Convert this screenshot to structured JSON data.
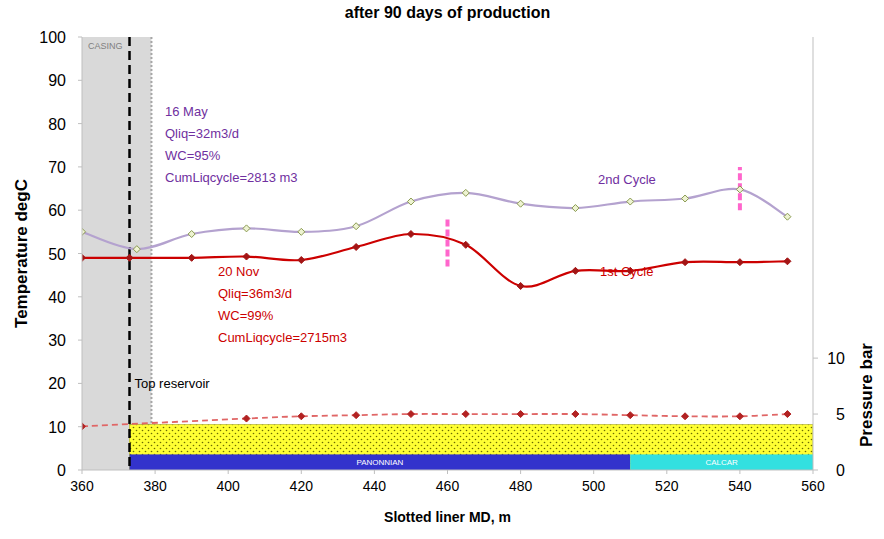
{
  "chart_data": {
    "type": "line",
    "title": "after 90 days of production",
    "x_label": "Slotted liner MD, m",
    "y_label": "Temperature degC",
    "y2_label": "Pressure bar",
    "xlim": [
      360,
      560
    ],
    "xticks": [
      360,
      380,
      400,
      420,
      440,
      460,
      480,
      500,
      520,
      540,
      560
    ],
    "ylim": [
      0,
      100
    ],
    "yticks": [
      0,
      10,
      20,
      30,
      40,
      50,
      60,
      70,
      80,
      90,
      100
    ],
    "y2lim": [
      0,
      38.7
    ],
    "y2ticks": [
      0,
      5,
      10
    ],
    "grid": false,
    "series": [
      {
        "name": "1st Cycle",
        "color": "#cc0000",
        "marker": "diamond",
        "line_style": "solid",
        "x": [
          360,
          373,
          390,
          405,
          420,
          435,
          450,
          465,
          480,
          495,
          510,
          525,
          540,
          553
        ],
        "values": [
          49,
          49,
          49,
          49.3,
          48.5,
          51.5,
          54.5,
          52,
          42.5,
          46,
          46,
          48,
          48,
          48.2
        ]
      },
      {
        "name": "2nd Cycle",
        "color": "#b4a2cf",
        "marker": "diamond",
        "line_style": "solid",
        "x": [
          360,
          375,
          390,
          405,
          420,
          435,
          450,
          465,
          480,
          495,
          510,
          525,
          540,
          553
        ],
        "values": [
          55,
          51,
          54.5,
          55.8,
          55,
          56.3,
          62,
          64,
          61.5,
          60.5,
          62,
          62.7,
          64.8,
          58.5
        ]
      },
      {
        "color": "#e06666",
        "marker": "diamond",
        "line_style": "dashed",
        "axis": "y2",
        "x": [
          360,
          405,
          420,
          435,
          450,
          465,
          480,
          495,
          510,
          525,
          540,
          553
        ],
        "values": [
          3.9,
          4.6,
          4.8,
          4.9,
          5.0,
          5.0,
          5.0,
          5.0,
          4.9,
          4.8,
          4.8,
          5.0
        ]
      }
    ],
    "annotations": [
      {
        "text": "16 May",
        "color": "#7030a0"
      },
      {
        "text": "Qliq=32m3/d",
        "color": "#7030a0"
      },
      {
        "text": "WC=95%",
        "color": "#7030a0"
      },
      {
        "text": "CumLiqcycle=2813 m3",
        "color": "#7030a0"
      },
      {
        "text": "20 Nov",
        "color": "#cc0000"
      },
      {
        "text": "Qliq=36m3/d",
        "color": "#cc0000"
      },
      {
        "text": "WC=99%",
        "color": "#cc0000"
      },
      {
        "text": "CumLiqcycle=2715m3",
        "color": "#cc0000"
      }
    ],
    "casing": {
      "label": "CASING",
      "x": [
        360,
        379
      ]
    },
    "top_reservoir": {
      "label": "Top reservoir",
      "x": 373
    },
    "cycle_marks": [
      {
        "x": 460,
        "y": [
          47,
          58
        ],
        "color": "#ff66cc"
      },
      {
        "x": 540,
        "y": [
          60,
          70
        ],
        "color": "#ff66cc"
      }
    ],
    "reservoir_band": {
      "x": [
        373,
        560
      ],
      "top": 10.5,
      "color": "#ffff33"
    },
    "lithology": [
      {
        "label": "PANONNIAN",
        "x": [
          373,
          510
        ],
        "top": 3.6,
        "color": "#3333cc"
      },
      {
        "label": "CALCAR",
        "x": [
          510,
          560
        ],
        "top": 3.6,
        "color": "#33e0e0"
      }
    ]
  }
}
